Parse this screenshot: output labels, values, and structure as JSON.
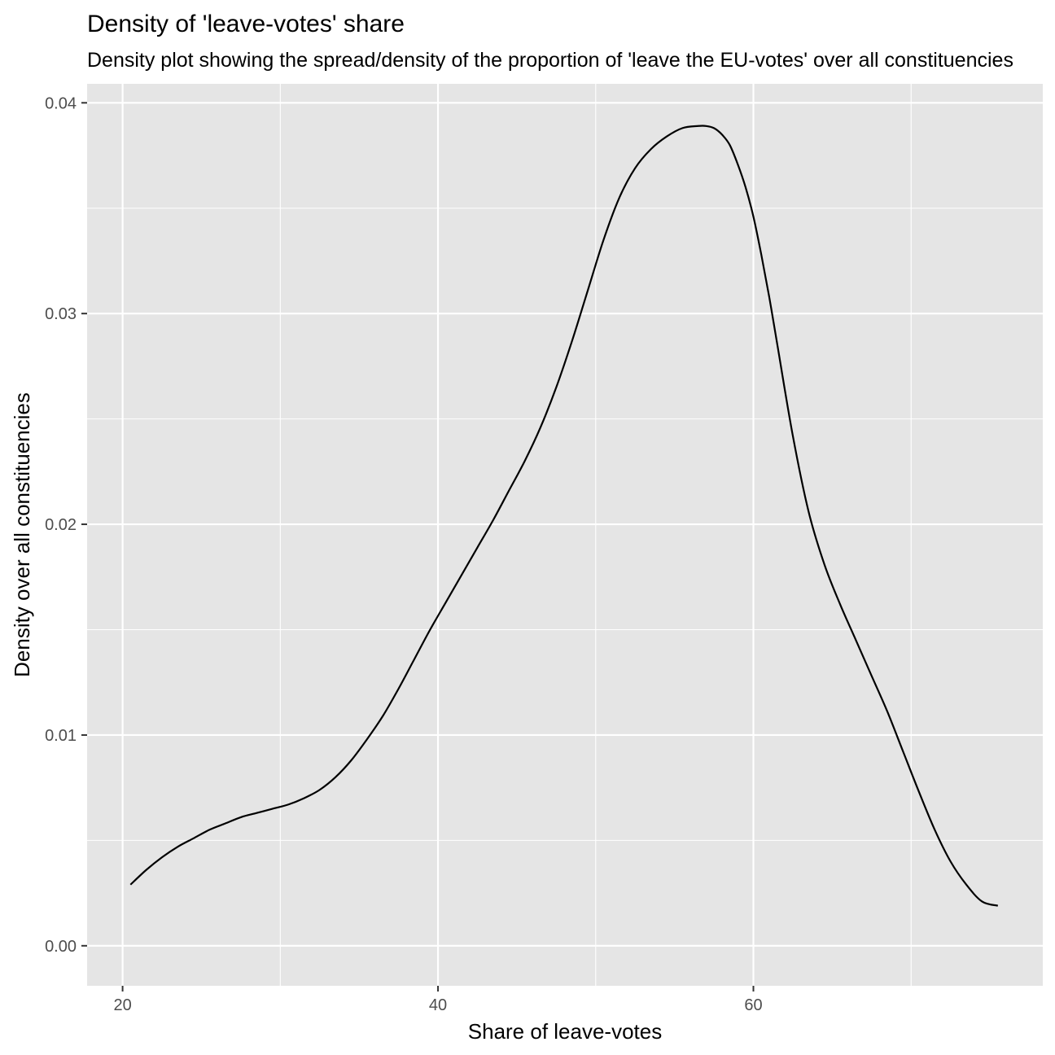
{
  "chart_data": {
    "type": "line",
    "title": "Density of 'leave-votes' share",
    "subtitle": "Density plot showing the spread/density of the proportion of 'leave the EU-votes' over all constituencies",
    "xlabel": "Share of leave-votes",
    "ylabel": "Density over all constituencies",
    "xlim": [
      17.75,
      78.35
    ],
    "ylim": [
      -0.0019,
      0.0409
    ],
    "x_ticks": [
      20,
      40,
      60
    ],
    "x_tick_labels": [
      "20",
      "40",
      "60"
    ],
    "y_ticks": [
      0.0,
      0.01,
      0.02,
      0.03,
      0.04
    ],
    "y_tick_labels": [
      "0.00",
      "0.01",
      "0.02",
      "0.03",
      "0.04"
    ],
    "grid": true,
    "colors": {
      "panel_background": "#e5e5e5",
      "grid_line": "#ffffff",
      "curve": "#000000",
      "tick_label": "#4d4d4d"
    },
    "series": [
      {
        "x": [
          20.5,
          21.5,
          22.5,
          23.5,
          24.5,
          25.5,
          26.5,
          27.5,
          28.5,
          29.5,
          30.5,
          31.5,
          32.5,
          33.5,
          34.5,
          35.5,
          36.5,
          37.5,
          38.5,
          39.5,
          40.5,
          41.5,
          42.5,
          43.5,
          44.5,
          45.5,
          46.5,
          47.5,
          48.5,
          49.5,
          50.5,
          51.5,
          52.5,
          53.5,
          54.5,
          55.5,
          56.5,
          57.0,
          57.5,
          58.0,
          58.5,
          59.0,
          59.5,
          60.0,
          60.5,
          61.0,
          61.5,
          62.5,
          63.5,
          64.5,
          65.5,
          66.5,
          67.5,
          68.5,
          69.5,
          70.5,
          71.5,
          72.5,
          73.5,
          74.5,
          75.5
        ],
        "y": [
          0.0029,
          0.0036,
          0.0042,
          0.0047,
          0.0051,
          0.0055,
          0.0058,
          0.0061,
          0.0063,
          0.0065,
          0.0067,
          0.007,
          0.0074,
          0.008,
          0.0088,
          0.0098,
          0.0109,
          0.0122,
          0.0136,
          0.015,
          0.0163,
          0.0176,
          0.0189,
          0.0202,
          0.0216,
          0.023,
          0.0246,
          0.0265,
          0.0287,
          0.0311,
          0.0335,
          0.0355,
          0.0369,
          0.0378,
          0.0384,
          0.0388,
          0.0389,
          0.0389,
          0.0388,
          0.0385,
          0.038,
          0.0371,
          0.036,
          0.0346,
          0.0328,
          0.0308,
          0.0286,
          0.0242,
          0.0206,
          0.0181,
          0.0162,
          0.0145,
          0.0128,
          0.0111,
          0.0092,
          0.0073,
          0.0055,
          0.004,
          0.0029,
          0.0021,
          0.0019
        ]
      }
    ]
  }
}
